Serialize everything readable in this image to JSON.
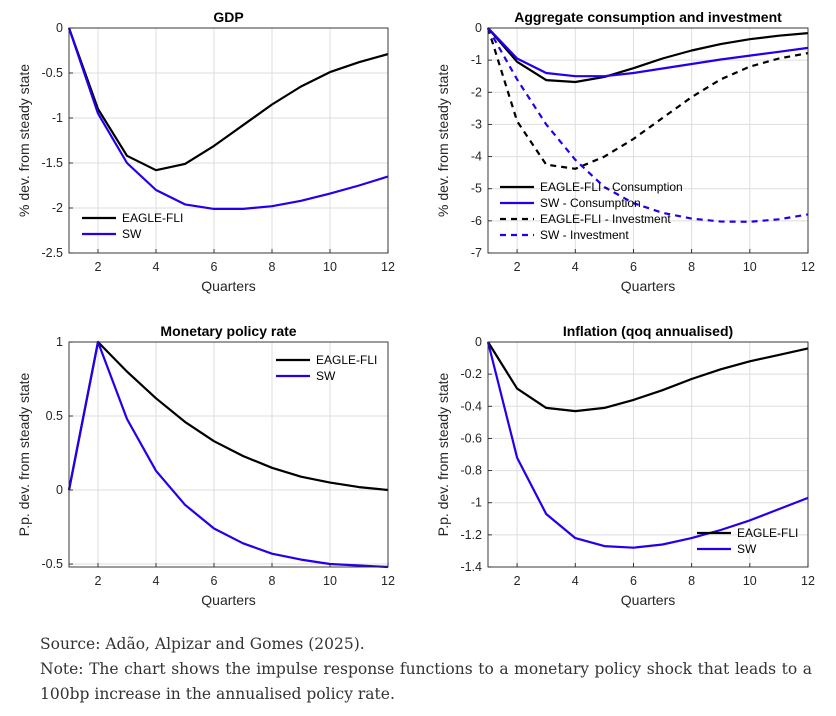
{
  "chart_data": [
    {
      "type": "line",
      "title": "GDP",
      "xlabel": "Quarters",
      "ylabel": "% dev. from steady state",
      "xlim": [
        1,
        12
      ],
      "ylim": [
        -2.5,
        0
      ],
      "xticks": [
        2,
        4,
        6,
        8,
        10,
        12
      ],
      "yticks": [
        0,
        -0.5,
        -1,
        -1.5,
        -2,
        -2.5
      ],
      "ytick_labels": [
        "0",
        "-0.5",
        "-1",
        "-1.5",
        "-2",
        "-2.5"
      ],
      "legend": "bottom-left",
      "x": [
        1,
        2,
        3,
        4,
        5,
        6,
        7,
        8,
        9,
        10,
        11,
        12
      ],
      "series": [
        {
          "name": "EAGLE-FLI",
          "color": "#000000",
          "dash": "solid",
          "values": [
            0,
            -0.9,
            -1.42,
            -1.58,
            -1.51,
            -1.31,
            -1.08,
            -0.85,
            -0.65,
            -0.49,
            -0.38,
            -0.29
          ]
        },
        {
          "name": "SW",
          "color": "#2200ee",
          "dash": "solid",
          "values": [
            0,
            -0.95,
            -1.5,
            -1.8,
            -1.96,
            -2.01,
            -2.01,
            -1.98,
            -1.92,
            -1.84,
            -1.75,
            -1.65
          ]
        }
      ]
    },
    {
      "type": "line",
      "title": "Aggregate consumption and investment",
      "xlabel": "Quarters",
      "ylabel": "% dev. from steady state",
      "xlim": [
        1,
        12
      ],
      "ylim": [
        -7,
        0
      ],
      "xticks": [
        2,
        4,
        6,
        8,
        10,
        12
      ],
      "yticks": [
        0,
        -1,
        -2,
        -3,
        -4,
        -5,
        -6,
        -7
      ],
      "ytick_labels": [
        "0",
        "-1",
        "-2",
        "-3",
        "-4",
        "-5",
        "-6",
        "-7"
      ],
      "legend": "bottom-left",
      "x": [
        1,
        2,
        3,
        4,
        5,
        6,
        7,
        8,
        9,
        10,
        11,
        12
      ],
      "series": [
        {
          "name": "EAGLE-FLI - Consumption",
          "color": "#000000",
          "dash": "solid",
          "values": [
            0,
            -1.05,
            -1.62,
            -1.68,
            -1.52,
            -1.25,
            -0.95,
            -0.7,
            -0.5,
            -0.35,
            -0.24,
            -0.16
          ]
        },
        {
          "name": "SW - Consumption",
          "color": "#2200ee",
          "dash": "solid",
          "values": [
            0,
            -0.95,
            -1.4,
            -1.5,
            -1.5,
            -1.4,
            -1.26,
            -1.12,
            -0.98,
            -0.86,
            -0.74,
            -0.62
          ]
        },
        {
          "name": "EAGLE-FLI - Investment",
          "color": "#000000",
          "dash": "dashed",
          "values": [
            0,
            -2.9,
            -4.25,
            -4.38,
            -4.0,
            -3.45,
            -2.8,
            -2.15,
            -1.6,
            -1.2,
            -0.95,
            -0.78
          ]
        },
        {
          "name": "SW - Investment",
          "color": "#2200ee",
          "dash": "dashed",
          "values": [
            0,
            -1.6,
            -3.0,
            -4.1,
            -4.95,
            -5.45,
            -5.75,
            -5.93,
            -6.02,
            -6.03,
            -5.95,
            -5.8
          ]
        }
      ]
    },
    {
      "type": "line",
      "title": "Monetary policy rate",
      "xlabel": "Quarters",
      "ylabel": "P.p. dev. from steady state",
      "xlim": [
        1,
        12
      ],
      "ylim": [
        -0.52,
        1
      ],
      "xticks": [
        2,
        4,
        6,
        8,
        10,
        12
      ],
      "yticks": [
        1,
        0.5,
        0,
        -0.5
      ],
      "ytick_labels": [
        "1",
        "0.5",
        "0",
        "-0.5"
      ],
      "legend": "top-right",
      "x": [
        1,
        2,
        3,
        4,
        5,
        6,
        7,
        8,
        9,
        10,
        11,
        12
      ],
      "series": [
        {
          "name": "EAGLE-FLI",
          "color": "#000000",
          "dash": "solid",
          "values": [
            0,
            1.0,
            0.8,
            0.62,
            0.46,
            0.33,
            0.23,
            0.15,
            0.09,
            0.05,
            0.02,
            0.0
          ]
        },
        {
          "name": "SW",
          "color": "#2200ee",
          "dash": "solid",
          "values": [
            0,
            1.0,
            0.48,
            0.13,
            -0.1,
            -0.26,
            -0.36,
            -0.43,
            -0.47,
            -0.5,
            -0.51,
            -0.52
          ]
        }
      ]
    },
    {
      "type": "line",
      "title": "Inflation (qoq annualised)",
      "xlabel": "Quarters",
      "ylabel": "P.p. dev. from steady state",
      "xlim": [
        1,
        12
      ],
      "ylim": [
        -1.4,
        0
      ],
      "xticks": [
        2,
        4,
        6,
        8,
        10,
        12
      ],
      "yticks": [
        0,
        -0.2,
        -0.4,
        -0.6,
        -0.8,
        -1,
        -1.2,
        -1.4
      ],
      "ytick_labels": [
        "0",
        "-0.2",
        "-0.4",
        "-0.6",
        "-0.8",
        "-1",
        "-1.2",
        "-1.4"
      ],
      "legend": "bottom-right",
      "x": [
        1,
        2,
        3,
        4,
        5,
        6,
        7,
        8,
        9,
        10,
        11,
        12
      ],
      "series": [
        {
          "name": "EAGLE-FLI",
          "color": "#000000",
          "dash": "solid",
          "values": [
            0,
            -0.29,
            -0.41,
            -0.43,
            -0.41,
            -0.36,
            -0.3,
            -0.23,
            -0.17,
            -0.12,
            -0.08,
            -0.04
          ]
        },
        {
          "name": "SW",
          "color": "#2200ee",
          "dash": "solid",
          "values": [
            0,
            -0.72,
            -1.07,
            -1.22,
            -1.27,
            -1.28,
            -1.26,
            -1.22,
            -1.17,
            -1.11,
            -1.04,
            -0.97
          ]
        }
      ]
    }
  ],
  "footer": {
    "source": "Source: Adão, Alpizar and Gomes (2025).",
    "note": "Note: The chart shows the impulse response functions to a monetary policy shock that leads to a 100bp increase in the annualised policy rate."
  }
}
